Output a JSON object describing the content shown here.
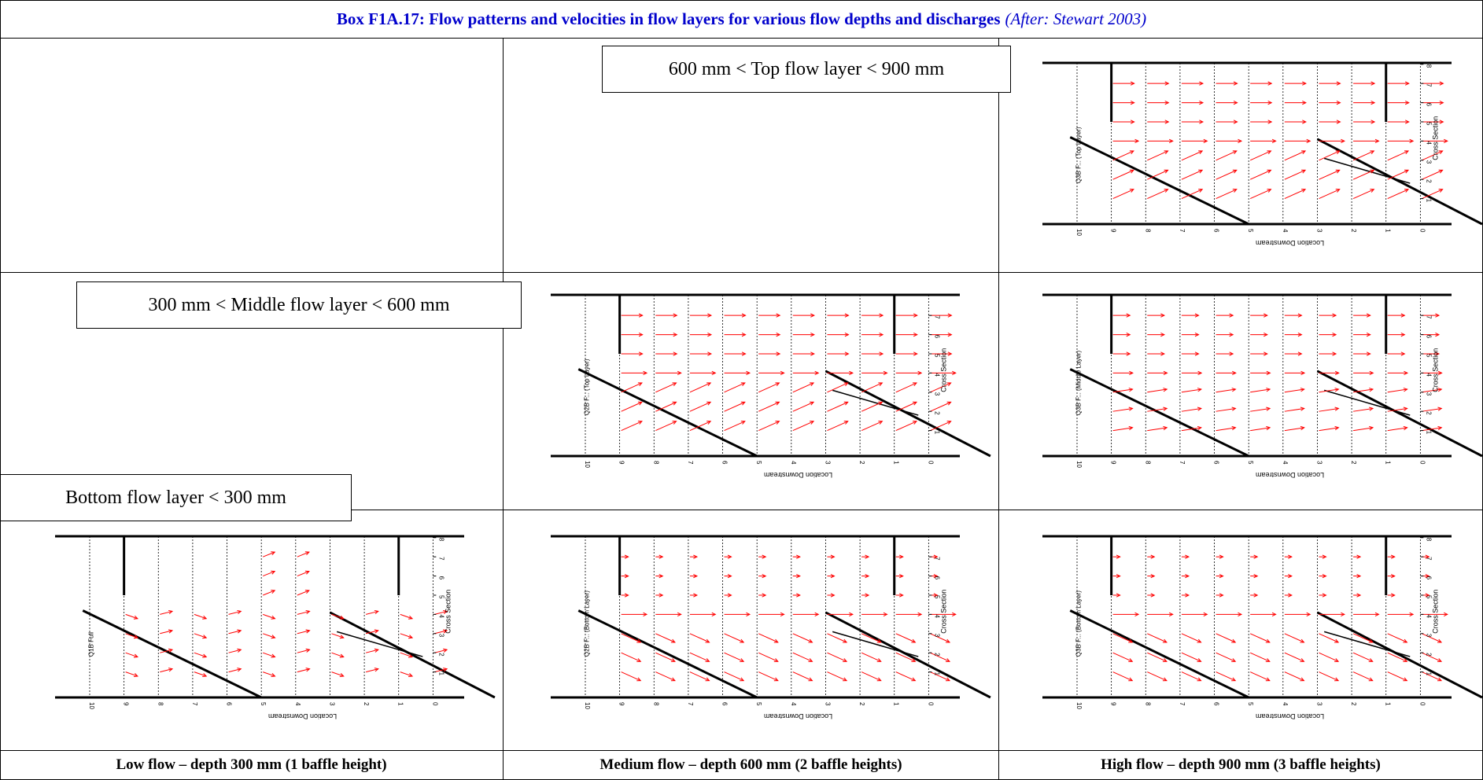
{
  "title": {
    "main": "Box F1A.17: Flow patterns and velocities in flow layers for various flow depths and discharges",
    "source": "(After: Stewart 2003)"
  },
  "layer_labels": {
    "top": "600 mm < Top flow layer < 900 mm",
    "middle": "300 mm < Middle flow layer < 600 mm",
    "bottom": "Bottom flow layer < 300 mm"
  },
  "captions": {
    "low": "Low flow – depth 300 mm (1 baffle height)",
    "medium": "Medium flow – depth 600 mm (2 baffle heights)",
    "high": "High flow – depth 900 mm (3 baffle heights)"
  },
  "colors": {
    "title": "#0000cc",
    "vectors": "#ff0000",
    "lines": "#000000"
  },
  "plots": [
    {
      "id": "high-top",
      "vector_pattern": "top",
      "side_label": "Q3B F... (Top Layer)",
      "axis_y_label": "Cross Section",
      "axis_x_label": "Location Downstream",
      "y_ticks": [
        "1",
        "2",
        "3",
        "4",
        "5",
        "6",
        "7",
        "8"
      ],
      "x_ticks": [
        "10",
        "9",
        "8",
        "7",
        "6",
        "5",
        "4",
        "3",
        "2",
        "1",
        "0"
      ]
    },
    {
      "id": "medium-top",
      "vector_pattern": "top",
      "side_label": "Q2B F... (Top Layer)",
      "axis_y_label": "Cross Section",
      "axis_x_label": "Location Downstream",
      "y_ticks": [
        "1",
        "2",
        "3",
        "4",
        "5",
        "6",
        "7"
      ],
      "x_ticks": [
        "10",
        "9",
        "8",
        "7",
        "6",
        "5",
        "4",
        "3",
        "2",
        "1",
        "0"
      ]
    },
    {
      "id": "high-middle",
      "vector_pattern": "middle",
      "side_label": "Q3B F... (Middle Layer)",
      "axis_y_label": "Cross Section",
      "axis_x_label": "Location Downstream",
      "y_ticks": [
        "1",
        "2",
        "3",
        "4",
        "5",
        "6",
        "7"
      ],
      "x_ticks": [
        "10",
        "9",
        "8",
        "7",
        "6",
        "5",
        "4",
        "3",
        "2",
        "1",
        "0"
      ]
    },
    {
      "id": "low-bottom",
      "vector_pattern": "low",
      "side_label": "Q1B Full",
      "axis_y_label": "Cross Section",
      "axis_x_label": "Location Downstream",
      "y_ticks": [
        "1",
        "2",
        "3",
        "4",
        "5",
        "6",
        "7",
        "8"
      ],
      "x_ticks": [
        "10",
        "9",
        "8",
        "7",
        "6",
        "5",
        "4",
        "3",
        "2",
        "1",
        "0"
      ]
    },
    {
      "id": "medium-bottom",
      "vector_pattern": "bottom",
      "side_label": "Q2B F... (Bottom Layer)",
      "axis_y_label": "Cross Section",
      "axis_x_label": "Location Downstream",
      "y_ticks": [
        "1",
        "2",
        "3",
        "4",
        "5",
        "6",
        "7"
      ],
      "x_ticks": [
        "10",
        "9",
        "8",
        "7",
        "6",
        "5",
        "4",
        "3",
        "2",
        "1",
        "0"
      ]
    },
    {
      "id": "high-bottom",
      "vector_pattern": "bottom",
      "side_label": "Q3B F... (Bottom Layer)",
      "axis_y_label": "Cross Section",
      "axis_x_label": "Location Downstream",
      "y_ticks": [
        "1",
        "2",
        "3",
        "4",
        "5",
        "6",
        "7",
        "8"
      ],
      "x_ticks": [
        "10",
        "9",
        "8",
        "7",
        "6",
        "5",
        "4",
        "3",
        "2",
        "1",
        "0"
      ]
    }
  ]
}
